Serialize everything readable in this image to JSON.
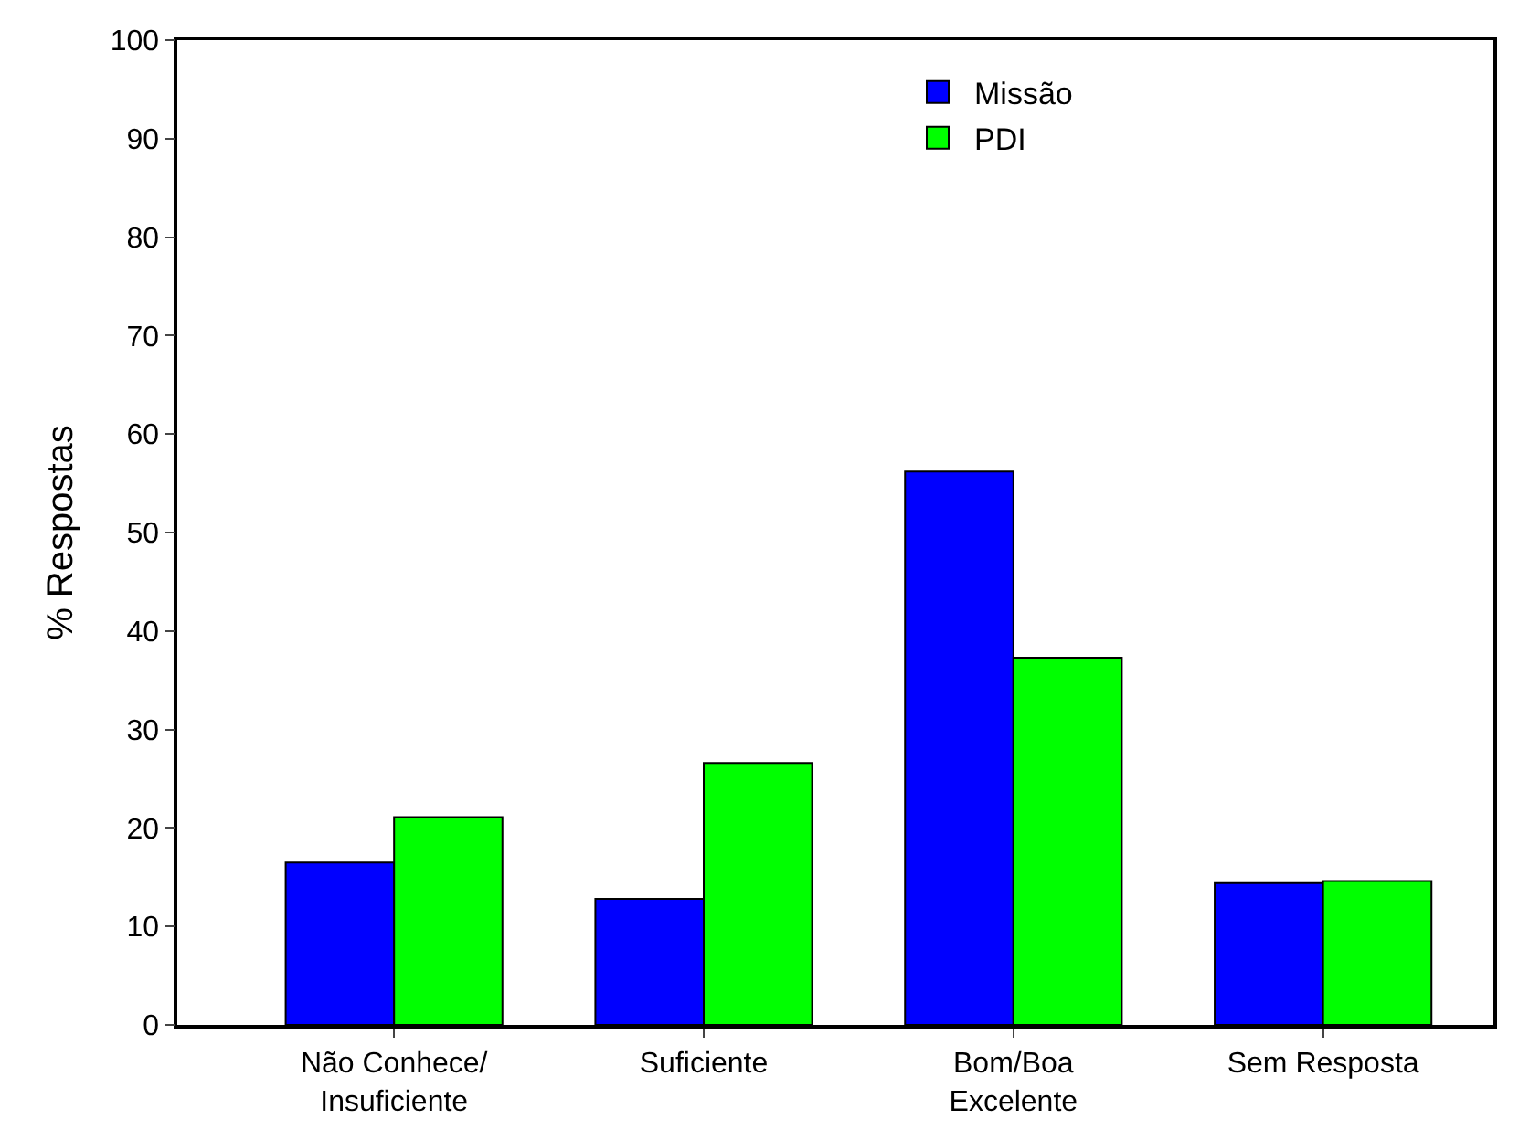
{
  "chart_data": {
    "type": "bar",
    "ylabel": "% Respostas",
    "categories": [
      "Não Conhece/\nInsuficiente",
      "Suficiente",
      "Bom/Boa\nExcelente",
      "Sem Resposta"
    ],
    "series": [
      {
        "name": "Missão",
        "color": "#0000ff",
        "values": [
          16.5,
          12.8,
          56.2,
          14.4
        ]
      },
      {
        "name": "PDI",
        "color": "#00ff00",
        "values": [
          21.1,
          26.6,
          37.3,
          14.6
        ]
      }
    ],
    "ylim": [
      0,
      100
    ],
    "yticks": [
      0,
      10,
      20,
      30,
      40,
      50,
      60,
      70,
      80,
      90,
      100
    ],
    "legend": "top"
  }
}
